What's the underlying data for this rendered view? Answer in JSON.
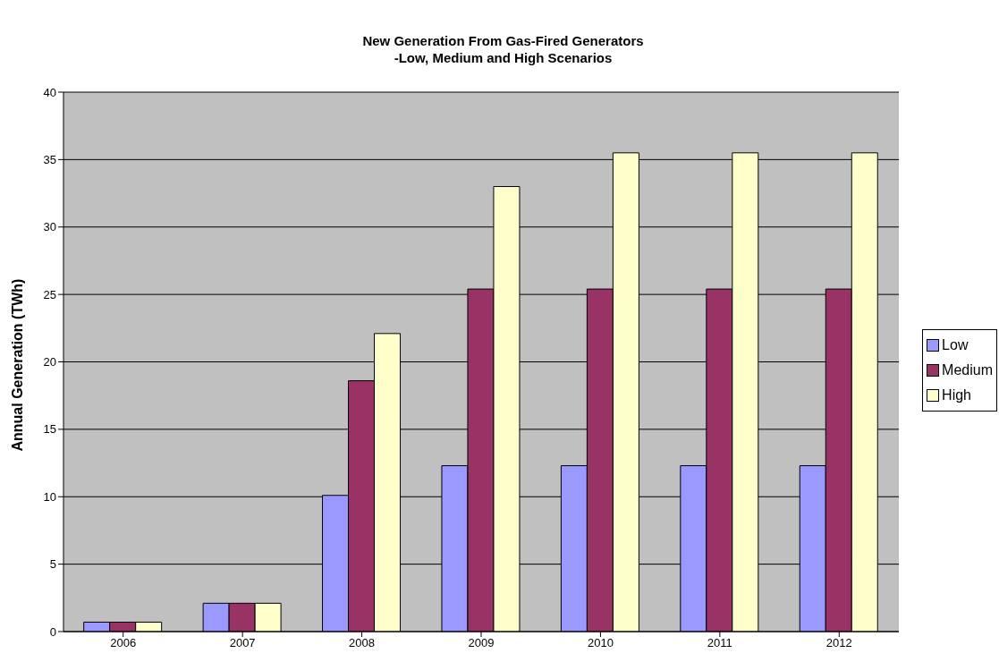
{
  "chart_data": {
    "type": "bar",
    "title": "New Generation From Gas-Fired Generators\n-Low, Medium and High Scenarios",
    "ylabel": "Annual Generation (TWh)",
    "categories": [
      "2006",
      "2007",
      "2008",
      "2009",
      "2010",
      "2011",
      "2012"
    ],
    "series": [
      {
        "name": "Low",
        "color": "#9999ff",
        "values": [
          0.7,
          2.1,
          10.1,
          12.3,
          12.3,
          12.3,
          12.3
        ]
      },
      {
        "name": "Medium",
        "color": "#993366",
        "values": [
          0.7,
          2.1,
          18.6,
          25.4,
          25.4,
          25.4,
          25.4
        ]
      },
      {
        "name": "High",
        "color": "#ffffcc",
        "values": [
          0.7,
          2.1,
          22.1,
          33.0,
          35.5,
          35.5,
          35.5
        ]
      }
    ],
    "ylim": [
      0,
      40
    ],
    "yticks": [
      0,
      5,
      10,
      15,
      20,
      25,
      30,
      35,
      40
    ],
    "grid": "y",
    "legend": "right"
  }
}
